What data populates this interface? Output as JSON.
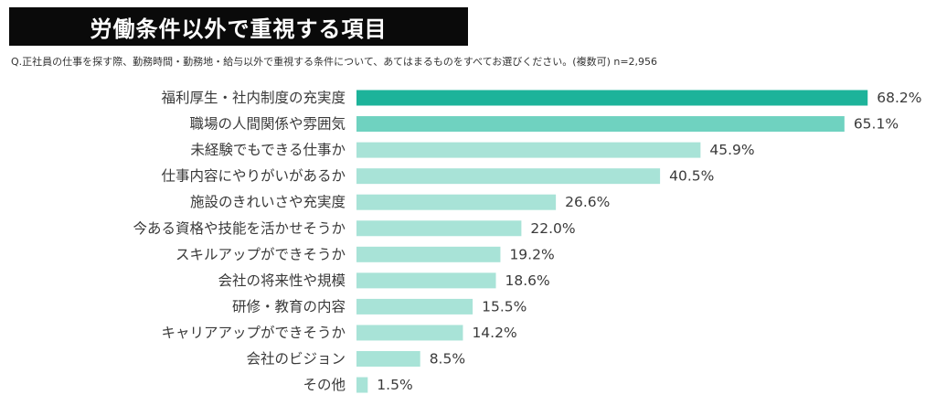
{
  "header": {
    "title": "労働条件以外で重視する項目",
    "question": "Q.正社員の仕事を探す際、勤務時間・勤務地・給与以外で重視する条件について、あてはまるものをすべてお選びください。(複数可) n=2,956"
  },
  "colors": {
    "title_background": "#0a0a0a",
    "top_bar": "#1db39a",
    "second_bar": "#6fd2c0",
    "other_bars": "#a8e3d7"
  },
  "chart_data": {
    "type": "bar",
    "orientation": "horizontal",
    "categories": [
      "福利厚生・社内制度の充実度",
      "職場の人間関係や雰囲気",
      "未経験でもできる仕事か",
      "仕事内容にやりがいがあるか",
      "施設のきれいさや充実度",
      "今ある資格や技能を活かせそうか",
      "スキルアップができそうか",
      "会社の将来性や規模",
      "研修・教育の内容",
      "キャリアアップができそうか",
      "会社のビジョン",
      "その他"
    ],
    "values": [
      68.2,
      65.1,
      45.9,
      40.5,
      26.6,
      22.0,
      19.2,
      18.6,
      15.5,
      14.2,
      8.5,
      1.5
    ],
    "value_labels": [
      "68.2%",
      "65.1%",
      "45.9%",
      "40.5%",
      "26.6%",
      "22.0%",
      "19.2%",
      "18.6%",
      "15.5%",
      "14.2%",
      "8.5%",
      "1.5%"
    ],
    "unit": "%",
    "grid": false,
    "legend": "none"
  }
}
